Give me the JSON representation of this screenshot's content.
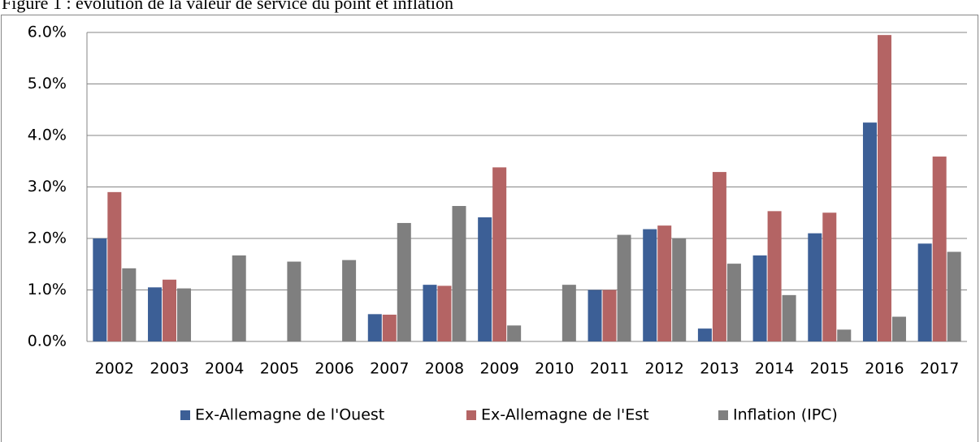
{
  "chart_data": {
    "type": "bar",
    "title": "Figure 1 : évolution de la valeur de service du point et inflation",
    "categories": [
      "2002",
      "2003",
      "2004",
      "2005",
      "2006",
      "2007",
      "2008",
      "2009",
      "2010",
      "2011",
      "2012",
      "2013",
      "2014",
      "2015",
      "2016",
      "2017"
    ],
    "series": [
      {
        "name": "Ex-Allemagne de l'Ouest",
        "color": "#3c5f96",
        "values": [
          2.0,
          1.05,
          0,
          0,
          0,
          0.53,
          1.1,
          2.41,
          0,
          1.0,
          2.18,
          0.25,
          1.67,
          2.1,
          4.25,
          1.9
        ]
      },
      {
        "name": "Ex-Allemagne de l'Est",
        "color": "#b46464",
        "values": [
          2.9,
          1.2,
          0,
          0,
          0,
          0.52,
          1.08,
          3.38,
          0,
          1.0,
          2.25,
          3.29,
          2.53,
          2.5,
          5.95,
          3.59
        ]
      },
      {
        "name": "Inflation (IPC)",
        "color": "#7f7f7f",
        "values": [
          1.42,
          1.03,
          1.67,
          1.55,
          1.58,
          2.3,
          2.63,
          0.31,
          1.1,
          2.07,
          2.0,
          1.51,
          0.9,
          0.23,
          0.48,
          1.74
        ]
      }
    ],
    "ylim": [
      0,
      6
    ],
    "yticks": [
      {
        "value": 0,
        "label": "0.0%"
      },
      {
        "value": 1,
        "label": "1.0%"
      },
      {
        "value": 2,
        "label": "2.0%"
      },
      {
        "value": 3,
        "label": "3.0%"
      },
      {
        "value": 4,
        "label": "4.0%"
      },
      {
        "value": 5,
        "label": "5.0%"
      },
      {
        "value": 6,
        "label": "6.0%"
      }
    ],
    "grid": true,
    "legend": "bottom"
  }
}
